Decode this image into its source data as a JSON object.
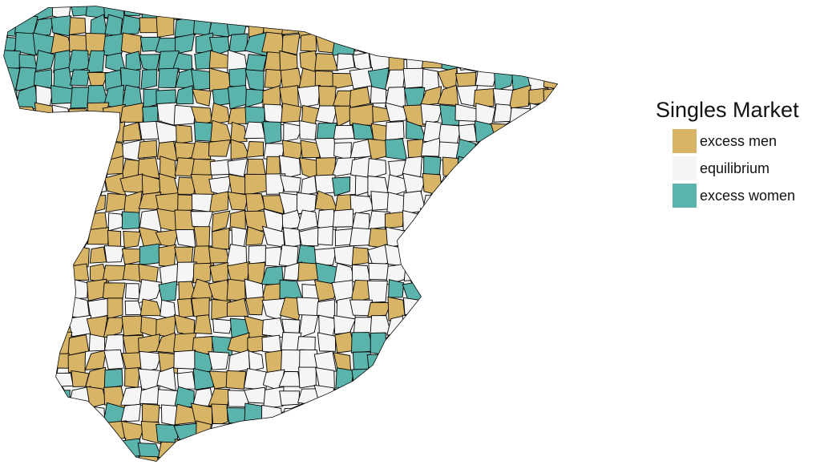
{
  "legend": {
    "title": "Singles Market",
    "items": [
      {
        "label": "excess men",
        "color": "#D7B466"
      },
      {
        "label": "equilibrium",
        "color": "#F5F5F5"
      },
      {
        "label": "excess women",
        "color": "#5AB4AC"
      }
    ]
  },
  "map": {
    "border_color": "#000000",
    "region_classes": [
      "excess men",
      "equilibrium",
      "excess women"
    ]
  }
}
